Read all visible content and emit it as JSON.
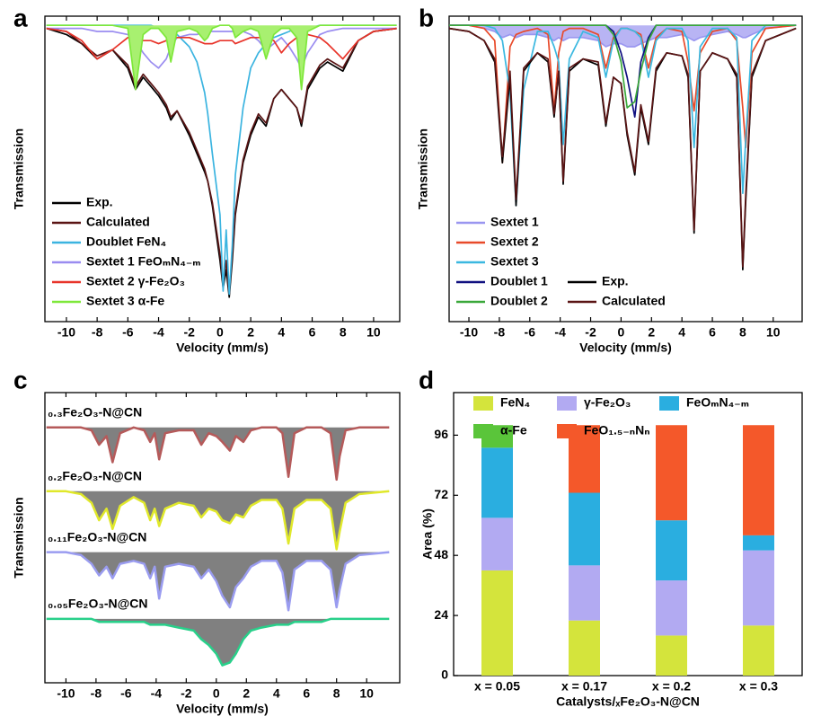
{
  "chart_data": [
    {
      "type": "line",
      "label": "a",
      "xlabel": "Velocity (mm/s)",
      "ylabel": "Transmission",
      "legend": "lower left",
      "xlim": [
        -11.4,
        11.7
      ],
      "xticks": [
        -10,
        -8,
        -6,
        -4,
        -2,
        0,
        2,
        4,
        6,
        8,
        10
      ],
      "ylim": [
        0,
        100
      ],
      "x": [
        -11.3,
        -10,
        -9,
        -8,
        -7,
        -6,
        -5.5,
        -5,
        -4.5,
        -4,
        -3.5,
        -3.2,
        -2.8,
        -2,
        -1.5,
        -1,
        -0.8,
        -0.5,
        0,
        0.2,
        0.4,
        0.6,
        0.8,
        1,
        1.5,
        2,
        2.5,
        3,
        3.5,
        4,
        4.5,
        5,
        5.3,
        5.7,
        6.5,
        7,
        8,
        9,
        10,
        11.5
      ],
      "series": [
        {
          "name": "Exp.",
          "color": "#000000",
          "values": [
            96,
            94,
            91,
            86,
            89,
            83,
            76,
            80,
            77,
            74,
            70,
            66,
            69,
            61,
            55,
            49,
            46,
            38,
            20,
            11,
            17,
            8,
            20,
            35,
            52,
            61,
            67,
            64,
            73,
            76,
            73,
            70,
            64,
            76,
            83,
            85,
            82,
            92,
            95,
            96
          ]
        },
        {
          "name": "Calculated",
          "color": "#5a1414",
          "values": [
            96,
            95,
            91,
            87,
            89,
            84,
            77,
            81,
            78,
            75,
            71,
            67,
            69,
            62,
            56,
            50,
            46,
            39,
            22,
            12,
            20,
            9,
            22,
            36,
            53,
            62,
            68,
            65,
            73,
            76,
            73,
            70,
            65,
            77,
            84,
            86,
            83,
            92,
            95,
            96
          ]
        },
        {
          "name": "Doublet FeN₄",
          "color": "#3bb4e0",
          "values": [
            97,
            97,
            97,
            97,
            97,
            97,
            97,
            97,
            97,
            96,
            96,
            95,
            94,
            90,
            85,
            75,
            68,
            55,
            35,
            10,
            30,
            9,
            25,
            48,
            70,
            83,
            88,
            91,
            93,
            94,
            95,
            96,
            96,
            96,
            97,
            97,
            97,
            97,
            97,
            97
          ]
        },
        {
          "name": "Sextet 1 FeOₘN₄₋ₘ",
          "color": "#9a8cf0",
          "values": [
            96,
            96,
            96,
            95,
            95,
            94,
            92,
            88,
            85,
            83,
            86,
            90,
            93,
            94,
            94,
            95,
            95,
            95,
            95,
            95,
            95,
            95,
            95,
            95,
            95,
            94,
            92,
            89,
            91,
            93,
            90,
            86,
            83,
            88,
            94,
            95,
            96,
            96,
            96,
            96
          ]
        },
        {
          "name": "Sextet 2 γ-Fe₂O₃",
          "color": "#e8342a",
          "values": [
            96,
            95,
            92,
            86,
            89,
            93,
            93,
            92,
            92,
            91,
            92,
            93,
            93,
            93,
            92,
            91,
            91,
            91,
            92,
            92,
            92,
            92,
            92,
            91,
            92,
            93,
            93,
            93,
            92,
            88,
            91,
            93,
            94,
            94,
            93,
            91,
            86,
            92,
            95,
            96
          ]
        },
        {
          "name": "Sextet 3 α-Fe",
          "color": "#7ee83a",
          "fill": "#a8f070",
          "values": [
            97,
            97,
            97,
            97,
            97,
            96,
            76,
            94,
            96,
            96,
            93,
            85,
            95,
            96,
            95,
            92,
            93,
            96,
            97,
            97,
            97,
            97,
            96,
            93,
            95,
            96,
            95,
            86,
            94,
            96,
            96,
            93,
            76,
            95,
            97,
            97,
            97,
            97,
            97,
            97
          ]
        }
      ]
    },
    {
      "type": "line",
      "label": "b",
      "xlabel": "Velocity (mm/s)",
      "ylabel": "Transmission",
      "legend": "lower left",
      "xlim": [
        -11.3,
        11.9
      ],
      "xticks": [
        -10,
        -8,
        -6,
        -4,
        -2,
        0,
        2,
        4,
        6,
        8,
        10
      ],
      "ylim": [
        0,
        100
      ],
      "x": [
        -11.3,
        -10,
        -9,
        -8.3,
        -7.8,
        -7.3,
        -6.9,
        -6.4,
        -5.5,
        -4.8,
        -4.4,
        -4.1,
        -3.8,
        -3.4,
        -2.5,
        -1.5,
        -1,
        -0.5,
        0,
        0.4,
        0.9,
        1.3,
        1.8,
        2.3,
        3,
        4,
        4.4,
        4.8,
        5.2,
        6,
        7,
        7.6,
        8,
        8.2,
        8.6,
        9.5,
        11.5
      ],
      "series": [
        {
          "name": "Sextet 1",
          "color": "#9a96f0",
          "fill": "#b8b4f4",
          "values": [
            97,
            97,
            96,
            95,
            93,
            94,
            93,
            94,
            94,
            93,
            92,
            93,
            92,
            93,
            93,
            92,
            90,
            91,
            91,
            90,
            90,
            91,
            92,
            93,
            93,
            94,
            93,
            92,
            93,
            94,
            95,
            94,
            93,
            93,
            94,
            96,
            97
          ]
        },
        {
          "name": "Sextet 2",
          "color": "#e84a2a",
          "values": [
            97,
            97,
            96,
            92,
            52,
            90,
            94,
            95,
            96,
            94,
            69,
            88,
            95,
            96,
            96,
            94,
            83,
            93,
            96,
            96,
            95,
            94,
            83,
            93,
            96,
            95,
            85,
            69,
            88,
            95,
            96,
            92,
            70,
            57,
            88,
            96,
            97
          ]
        },
        {
          "name": "Sextet 3",
          "color": "#3bb8e0",
          "values": [
            97,
            97,
            97,
            96,
            92,
            75,
            38,
            76,
            95,
            95,
            90,
            85,
            58,
            86,
            95,
            93,
            80,
            92,
            96,
            96,
            95,
            93,
            80,
            92,
            96,
            96,
            92,
            57,
            90,
            96,
            96,
            93,
            42,
            60,
            92,
            97,
            97
          ]
        },
        {
          "name": "Doublet 1",
          "color": "#101080",
          "values": [
            97,
            97,
            97,
            97,
            97,
            97,
            97,
            97,
            97,
            97,
            97,
            97,
            97,
            97,
            97,
            97,
            97,
            95,
            88,
            80,
            67,
            85,
            93,
            97,
            97,
            97,
            97,
            97,
            97,
            97,
            97,
            97,
            97,
            97,
            97,
            97,
            97
          ]
        },
        {
          "name": "Doublet 2",
          "color": "#3aa83a",
          "values": [
            97,
            97,
            97,
            97,
            97,
            97,
            97,
            97,
            97,
            97,
            97,
            97,
            97,
            97,
            97,
            97,
            97,
            94,
            85,
            70,
            72,
            82,
            92,
            97,
            97,
            97,
            97,
            97,
            97,
            97,
            97,
            97,
            97,
            97,
            97,
            97,
            97
          ]
        },
        {
          "name": "Exp.",
          "color": "#000000",
          "values": [
            96,
            95,
            92,
            85,
            52,
            80,
            38,
            82,
            88,
            85,
            67,
            82,
            45,
            82,
            86,
            84,
            64,
            80,
            78,
            61,
            48,
            70,
            58,
            82,
            88,
            87,
            80,
            29,
            82,
            88,
            86,
            80,
            17,
            40,
            80,
            92,
            96
          ]
        },
        {
          "name": "Calculated",
          "color": "#5a1414",
          "values": [
            96,
            95,
            92,
            86,
            54,
            82,
            40,
            83,
            88,
            86,
            68,
            82,
            46,
            83,
            86,
            85,
            65,
            80,
            78,
            62,
            49,
            71,
            59,
            83,
            88,
            87,
            81,
            30,
            82,
            88,
            86,
            81,
            18,
            42,
            81,
            92,
            96
          ]
        }
      ]
    },
    {
      "type": "line",
      "label": "c",
      "xlabel": "Velocity (mm/s)",
      "ylabel": "Transmission",
      "xlim": [
        -11.4,
        12.2
      ],
      "xticks": [
        -10,
        -8,
        -6,
        -4,
        -2,
        0,
        2,
        4,
        6,
        8,
        10
      ],
      "ylim": [
        0,
        100
      ],
      "x": [
        -11.3,
        -10,
        -9,
        -8.3,
        -7.8,
        -7.3,
        -6.9,
        -6.4,
        -5.5,
        -4.8,
        -4.4,
        -4.1,
        -3.8,
        -3.4,
        -2.5,
        -1.5,
        -1,
        -0.5,
        0,
        0.4,
        0.9,
        1.3,
        1.8,
        2.3,
        3,
        4,
        4.4,
        4.8,
        5.2,
        6,
        7,
        7.6,
        8,
        8.2,
        8.6,
        9.5,
        11.5
      ],
      "series": [
        {
          "name": "₀.₃Fe₂O₃-N@CN",
          "color": "#b55a5a",
          "fill": "#808080",
          "values": [
            88,
            88,
            88,
            87,
            82,
            85,
            76,
            86,
            88,
            87,
            83,
            86,
            77,
            86,
            87,
            87,
            82,
            86,
            85,
            83,
            80,
            85,
            83,
            87,
            88,
            88,
            86,
            71,
            86,
            88,
            88,
            86,
            70,
            78,
            87,
            88,
            88
          ]
        },
        {
          "name": "₀.₂Fe₂O₃-N@CN",
          "color": "#e0e82a",
          "fill": "#808080",
          "values": [
            66,
            66,
            65,
            62,
            56,
            60,
            53,
            61,
            64,
            62,
            56,
            60,
            54,
            60,
            62,
            61,
            57,
            60,
            59,
            56,
            55,
            58,
            57,
            61,
            63,
            63,
            60,
            48,
            60,
            63,
            63,
            60,
            46,
            52,
            62,
            65,
            66
          ]
        },
        {
          "name": "₀.₁₁Fe₂O₃-N@CN",
          "color": "#9a9cf0",
          "fill": "#808080",
          "values": [
            45,
            45,
            44,
            41,
            37,
            40,
            36,
            41,
            42,
            41,
            36,
            40,
            29,
            40,
            41,
            40,
            36,
            39,
            35,
            30,
            26,
            33,
            36,
            40,
            42,
            42,
            38,
            25,
            39,
            42,
            42,
            39,
            26,
            32,
            41,
            44,
            45
          ]
        },
        {
          "name": "₀.₀₅Fe₂O₃-N@CN",
          "color": "#28d08a",
          "fill": "#808080",
          "values": [
            22,
            22,
            22,
            22,
            21,
            21,
            21,
            21,
            21,
            21,
            20,
            20,
            20,
            20,
            19,
            18,
            15,
            13,
            10,
            6,
            7,
            10,
            15,
            18,
            19,
            20,
            20,
            20,
            21,
            21,
            21,
            22,
            22,
            22,
            22,
            22,
            22
          ]
        }
      ]
    },
    {
      "type": "stacked-bar",
      "label": "d",
      "xlabel": "Catalysts/ₓFe₂O₃-N@CN",
      "ylabel": "Area (%)",
      "categories": [
        "x = 0.05",
        "x = 0.17",
        "x = 0.2",
        "x = 0.3"
      ],
      "ylim": [
        0,
        113
      ],
      "yticks": [
        0,
        24,
        48,
        72,
        96
      ],
      "series": [
        {
          "name": "FeN₄",
          "color": "#d4e43c",
          "values": [
            42,
            22,
            16,
            20
          ]
        },
        {
          "name": "γ-Fe₂O₃",
          "color": "#b2aaf2",
          "values": [
            21,
            22,
            22,
            30
          ]
        },
        {
          "name": "FeOₘN₄₋ₘ",
          "color": "#2aaee0",
          "values": [
            28,
            29,
            24,
            6
          ]
        },
        {
          "name": "α-Fe",
          "color": "#5ac53a",
          "values": [
            9,
            0,
            0,
            0
          ]
        },
        {
          "name": "FeO₁.₅₋ₙNₙ",
          "color": "#f4582a",
          "values": [
            0,
            27,
            38,
            44
          ]
        }
      ]
    }
  ]
}
